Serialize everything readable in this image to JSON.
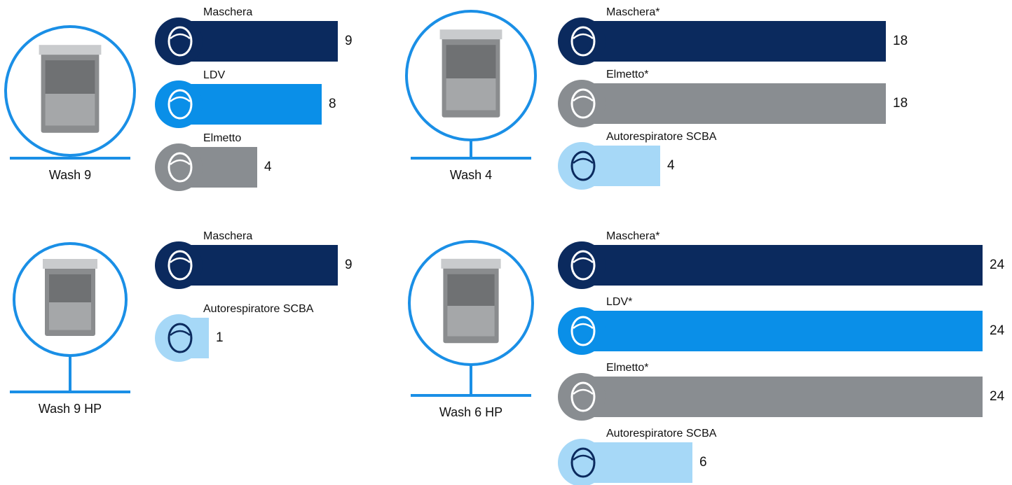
{
  "chart_data": [
    {
      "type": "bar",
      "title": "Wash 9",
      "categories": [
        "Maschera",
        "LDV",
        "Elmetto"
      ],
      "values": [
        9,
        8,
        4
      ],
      "colors": [
        "#0b2a5e",
        "#0a8fe8",
        "#898d91"
      ]
    },
    {
      "type": "bar",
      "title": "Wash 4",
      "categories": [
        "Maschera*",
        "Elmetto*",
        "Autorespiratore SCBA"
      ],
      "values": [
        18,
        18,
        4
      ],
      "colors": [
        "#0b2a5e",
        "#898d91",
        "#a6d8f7"
      ]
    },
    {
      "type": "bar",
      "title": "Wash 9 HP",
      "categories": [
        "Maschera",
        "Autorespiratore SCBA"
      ],
      "values": [
        9,
        1
      ],
      "colors": [
        "#0b2a5e",
        "#a6d8f7"
      ]
    },
    {
      "type": "bar",
      "title": "Wash 6 HP",
      "categories": [
        "Maschera*",
        "LDV*",
        "Elmetto*",
        "Autorespiratore SCBA"
      ],
      "values": [
        24,
        24,
        24,
        6
      ],
      "colors": [
        "#0b2a5e",
        "#0a8fe8",
        "#898d91",
        "#a6d8f7"
      ]
    }
  ]
}
